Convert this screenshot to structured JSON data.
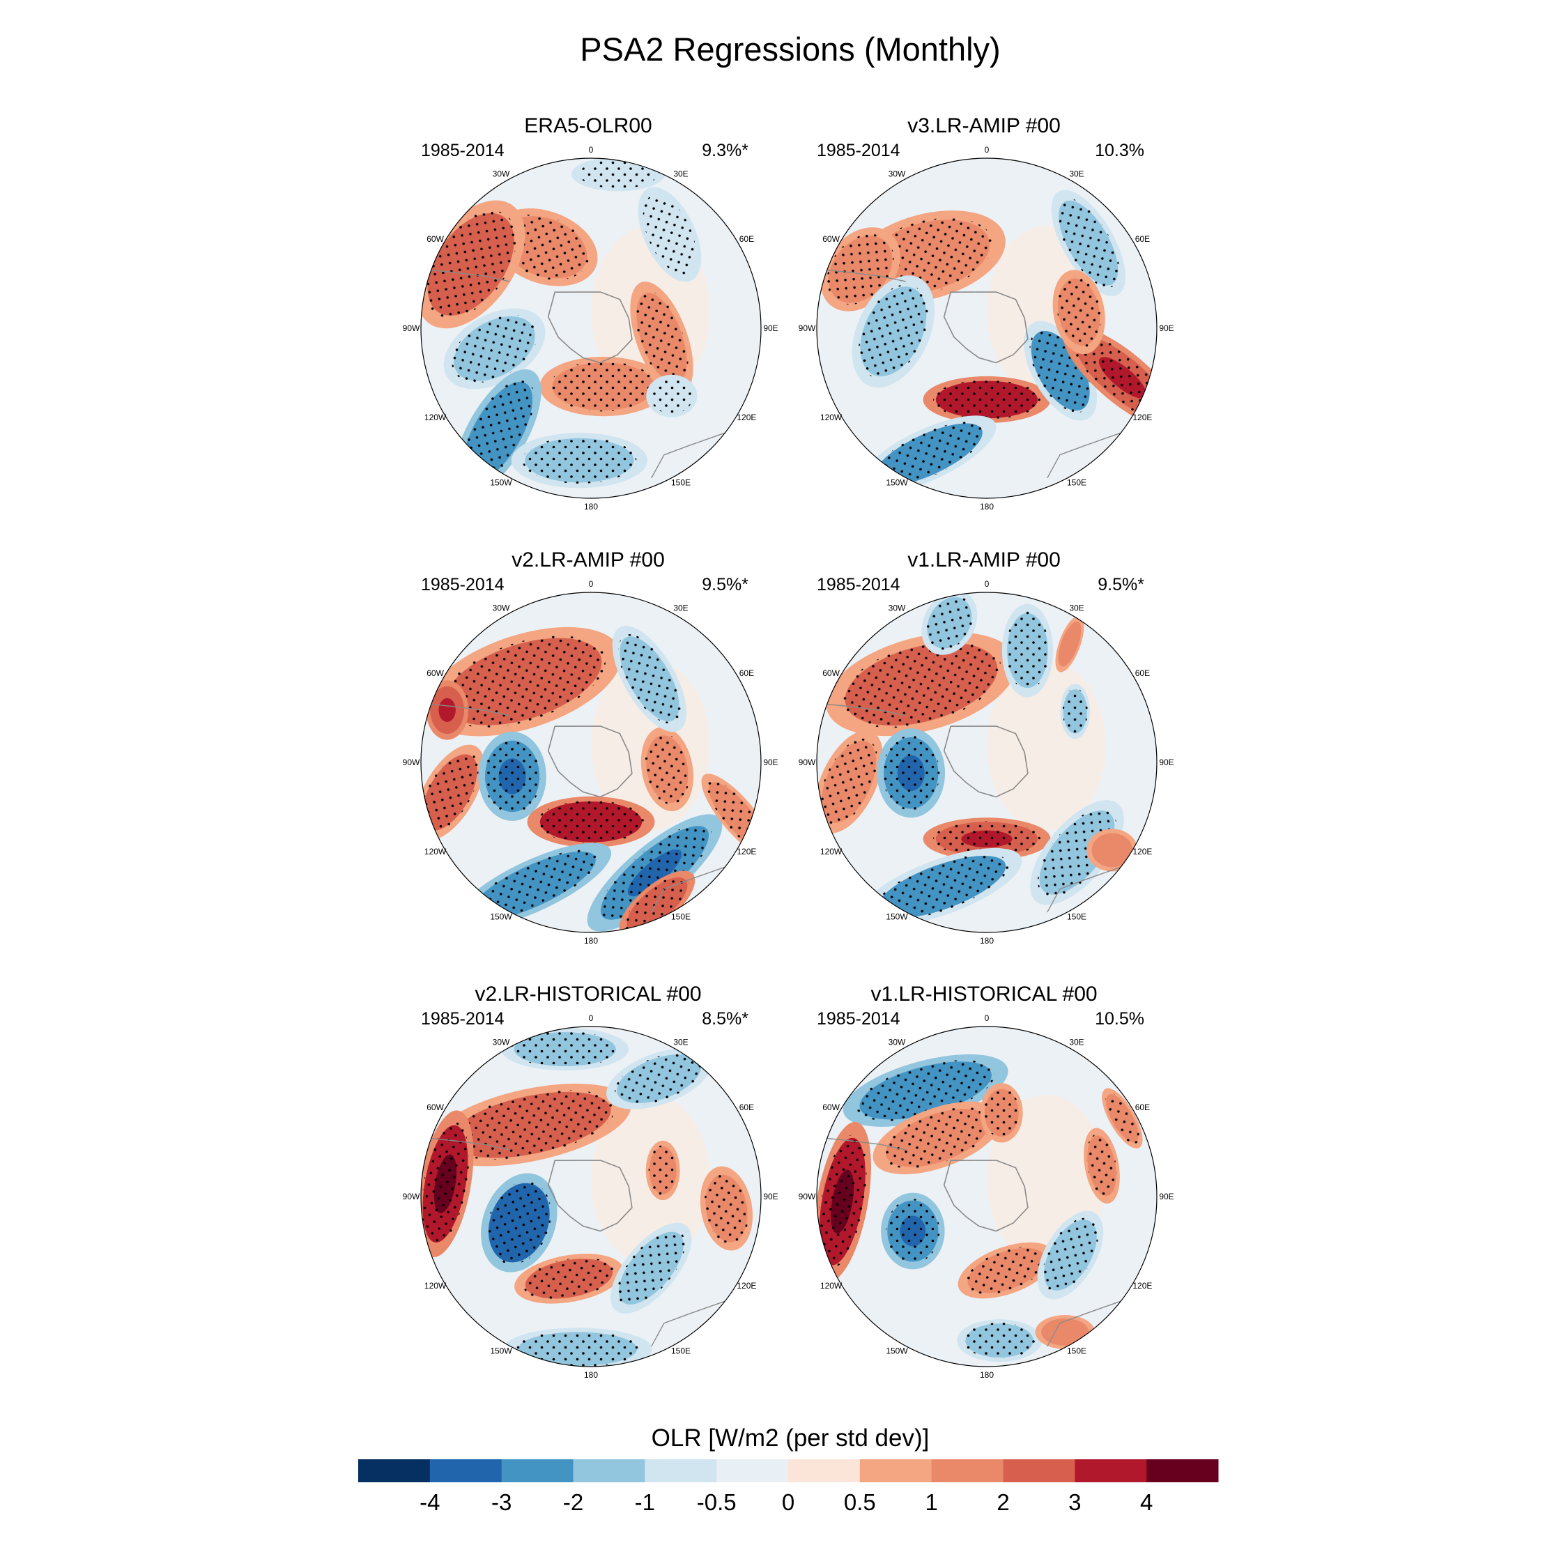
{
  "figure": {
    "title": "PSA2 Regressions (Monthly)"
  },
  "longitude_labels": [
    "0",
    "30E",
    "60E",
    "90E",
    "120E",
    "150E",
    "180",
    "150W",
    "120W",
    "90W",
    "60W",
    "30W"
  ],
  "panels": [
    {
      "title": "ERA5-OLR00",
      "period": "1985-2014",
      "pct": "9.3%*"
    },
    {
      "title": "v3.LR-AMIP  #00",
      "period": "1985-2014",
      "pct": "10.3%"
    },
    {
      "title": "v2.LR-AMIP  #00",
      "period": "1985-2014",
      "pct": "9.5%*"
    },
    {
      "title": "v1.LR-AMIP  #00",
      "period": "1985-2014",
      "pct": "9.5%*"
    },
    {
      "title": "v2.LR-HISTORICAL  #00",
      "period": "1985-2014",
      "pct": "8.5%*"
    },
    {
      "title": "v1.LR-HISTORICAL  #00",
      "period": "1985-2014",
      "pct": "10.5%"
    }
  ],
  "colorbar": {
    "title": "OLR [W/m2 (per std dev)]",
    "ticks": [
      "-4",
      "-3",
      "-2",
      "-1",
      "-0.5",
      "0",
      "0.5",
      "1",
      "2",
      "3",
      "4"
    ],
    "colors": [
      "#053061",
      "#2166ac",
      "#4393c3",
      "#92c5de",
      "#d1e5f0",
      "#e8eff5",
      "#fbe5d9",
      "#f4a582",
      "#e9896a",
      "#d6604d",
      "#b2182b",
      "#67001f"
    ]
  },
  "chart_data": {
    "type": "heatmap",
    "title": "PSA2 Regressions (Monthly)",
    "projection": "south polar stereographic",
    "variable": "OLR [W/m2 (per std dev)]",
    "levels": [
      -4,
      -3,
      -2,
      -1,
      -0.5,
      0,
      0.5,
      1,
      2,
      3,
      4
    ],
    "panels": [
      {
        "name": "ERA5-OLR00",
        "period": "1985-2014",
        "variance_explained": "9.3%*",
        "anomalies": [
          {
            "lon": 330,
            "colat": 0.55,
            "w": 0.26,
            "h": 0.17,
            "rot": 20,
            "value": 1.5,
            "stipple": true
          },
          {
            "lon": 298,
            "colat": 0.8,
            "w": 0.2,
            "h": 0.34,
            "rot": 35,
            "value": 2,
            "stipple": true
          },
          {
            "lon": 258,
            "colat": 0.58,
            "w": 0.16,
            "h": 0.26,
            "rot": 60,
            "value": -1.5,
            "stipple": true
          },
          {
            "lon": 168,
            "colat": 0.35,
            "w": 0.3,
            "h": 0.14,
            "rot": 0,
            "value": 1.8,
            "stipple": true
          },
          {
            "lon": 222,
            "colat": 0.82,
            "w": 0.14,
            "h": 0.33,
            "rot": 30,
            "value": -2.3,
            "stipple": true
          },
          {
            "lon": 185,
            "colat": 0.78,
            "w": 0.32,
            "h": 0.13,
            "rot": 0,
            "value": -1.5,
            "stipple": true
          },
          {
            "lon": 98,
            "colat": 0.42,
            "w": 0.12,
            "h": 0.28,
            "rot": -20,
            "value": 1.8,
            "stipple": true
          },
          {
            "lon": 40,
            "colat": 0.72,
            "w": 0.12,
            "h": 0.24,
            "rot": -25,
            "value": -0.8,
            "stipple": true
          },
          {
            "lon": 10,
            "colat": 0.92,
            "w": 0.22,
            "h": 0.08,
            "rot": 0,
            "value": -0.9,
            "stipple": true
          },
          {
            "lon": 130,
            "colat": 0.62,
            "w": 0.12,
            "h": 0.1,
            "rot": 0,
            "value": -0.8,
            "stipple": true
          }
        ]
      },
      {
        "name": "v3.LR-AMIP  #00",
        "period": "1985-2014",
        "variance_explained": "10.3%",
        "anomalies": [
          {
            "lon": 320,
            "colat": 0.55,
            "w": 0.38,
            "h": 0.2,
            "rot": -15,
            "value": 1.2,
            "stipple": true
          },
          {
            "lon": 295,
            "colat": 0.82,
            "w": 0.16,
            "h": 0.22,
            "rot": 40,
            "value": 1.8,
            "stipple": true
          },
          {
            "lon": 268,
            "colat": 0.55,
            "w": 0.17,
            "h": 0.28,
            "rot": 25,
            "value": -1.8,
            "stipple": true
          },
          {
            "lon": 180,
            "colat": 0.42,
            "w": 0.3,
            "h": 0.11,
            "rot": 0,
            "value": 3,
            "stipple": true
          },
          {
            "lon": 205,
            "colat": 0.82,
            "w": 0.35,
            "h": 0.12,
            "rot": -25,
            "value": -2.2,
            "stipple": true
          },
          {
            "lon": 120,
            "colat": 0.5,
            "w": 0.13,
            "h": 0.26,
            "rot": -30,
            "value": -2.2,
            "stipple": true
          },
          {
            "lon": 110,
            "colat": 0.85,
            "w": 0.12,
            "h": 0.35,
            "rot": -50,
            "value": 2.5,
            "stipple": true
          },
          {
            "lon": 50,
            "colat": 0.78,
            "w": 0.12,
            "h": 0.28,
            "rot": -30,
            "value": -1.8,
            "stipple": true
          },
          {
            "lon": 80,
            "colat": 0.55,
            "w": 0.12,
            "h": 0.2,
            "rot": -10,
            "value": 1.3,
            "stipple": true
          }
        ]
      },
      {
        "name": "v2.LR-AMIP  #00",
        "period": "1985-2014",
        "variance_explained": "9.5%*",
        "anomalies": [
          {
            "lon": 320,
            "colat": 0.62,
            "w": 0.48,
            "h": 0.22,
            "rot": -18,
            "value": 2,
            "stipple": true
          },
          {
            "lon": 290,
            "colat": 0.9,
            "w": 0.1,
            "h": 0.14,
            "rot": 0,
            "value": 2.8,
            "stipple": false
          },
          {
            "lon": 258,
            "colat": 0.85,
            "w": 0.12,
            "h": 0.25,
            "rot": 30,
            "value": 2,
            "stipple": true
          },
          {
            "lon": 260,
            "colat": 0.47,
            "w": 0.16,
            "h": 0.21,
            "rot": 0,
            "value": -3,
            "stipple": true
          },
          {
            "lon": 180,
            "colat": 0.35,
            "w": 0.3,
            "h": 0.12,
            "rot": 0,
            "value": 3,
            "stipple": true
          },
          {
            "lon": 205,
            "colat": 0.8,
            "w": 0.4,
            "h": 0.12,
            "rot": -25,
            "value": -2.3,
            "stipple": true
          },
          {
            "lon": 150,
            "colat": 0.75,
            "w": 0.13,
            "h": 0.4,
            "rot": 50,
            "value": -2.5,
            "stipple": true
          },
          {
            "lon": 155,
            "colat": 0.92,
            "w": 0.22,
            "h": 0.09,
            "rot": -40,
            "value": 2.3,
            "stipple": true
          },
          {
            "lon": 95,
            "colat": 0.45,
            "w": 0.12,
            "h": 0.2,
            "rot": -10,
            "value": 1.8,
            "stipple": true
          },
          {
            "lon": 35,
            "colat": 0.6,
            "w": 0.12,
            "h": 0.28,
            "rot": -30,
            "value": -1.8,
            "stipple": true
          },
          {
            "lon": 110,
            "colat": 0.92,
            "w": 0.08,
            "h": 0.25,
            "rot": -40,
            "value": 1.8,
            "stipple": true
          }
        ]
      },
      {
        "name": "v1.LR-AMIP  #00",
        "period": "1985-2014",
        "variance_explained": "9.5%*",
        "anomalies": [
          {
            "lon": 320,
            "colat": 0.6,
            "w": 0.46,
            "h": 0.22,
            "rot": -15,
            "value": 2,
            "stipple": true
          },
          {
            "lon": 262,
            "colat": 0.82,
            "w": 0.13,
            "h": 0.26,
            "rot": 25,
            "value": 1.8,
            "stipple": true
          },
          {
            "lon": 262,
            "colat": 0.45,
            "w": 0.16,
            "h": 0.21,
            "rot": 0,
            "value": -2.8,
            "stipple": true
          },
          {
            "lon": 180,
            "colat": 0.45,
            "w": 0.3,
            "h": 0.1,
            "rot": 0,
            "value": 2.5,
            "stipple": true
          },
          {
            "lon": 200,
            "colat": 0.78,
            "w": 0.4,
            "h": 0.13,
            "rot": -20,
            "value": -2.2,
            "stipple": true
          },
          {
            "lon": 135,
            "colat": 0.75,
            "w": 0.14,
            "h": 0.3,
            "rot": 40,
            "value": -1.8,
            "stipple": true
          },
          {
            "lon": 345,
            "colat": 0.85,
            "w": 0.12,
            "h": 0.16,
            "rot": 30,
            "value": -2,
            "stipple": true
          },
          {
            "lon": 20,
            "colat": 0.7,
            "w": 0.12,
            "h": 0.22,
            "rot": 0,
            "value": -1.5,
            "stipple": true
          },
          {
            "lon": 60,
            "colat": 0.6,
            "w": 0.07,
            "h": 0.13,
            "rot": 0,
            "value": -1.5,
            "stipple": true
          },
          {
            "lon": 35,
            "colat": 0.85,
            "w": 0.05,
            "h": 0.14,
            "rot": 20,
            "value": 1.8,
            "stipple": false
          },
          {
            "lon": 125,
            "colat": 0.9,
            "w": 0.12,
            "h": 0.1,
            "rot": 0,
            "value": 1.8,
            "stipple": false
          }
        ]
      },
      {
        "name": "v2.LR-HISTORICAL  #00",
        "period": "1985-2014",
        "variance_explained": "8.5%*",
        "anomalies": [
          {
            "lon": 320,
            "colat": 0.55,
            "w": 0.48,
            "h": 0.17,
            "rot": -12,
            "value": 2,
            "stipple": true
          },
          {
            "lon": 275,
            "colat": 0.86,
            "w": 0.12,
            "h": 0.35,
            "rot": 10,
            "value": 3.5,
            "stipple": true
          },
          {
            "lon": 250,
            "colat": 0.45,
            "w": 0.17,
            "h": 0.24,
            "rot": 20,
            "value": -3.2,
            "stipple": true
          },
          {
            "lon": 195,
            "colat": 0.5,
            "w": 0.26,
            "h": 0.11,
            "rot": -10,
            "value": 2.2,
            "stipple": true
          },
          {
            "lon": 185,
            "colat": 0.9,
            "w": 0.35,
            "h": 0.1,
            "rot": 0,
            "value": -1.8,
            "stipple": true
          },
          {
            "lon": 140,
            "colat": 0.55,
            "w": 0.12,
            "h": 0.26,
            "rot": 40,
            "value": -1.8,
            "stipple": true
          },
          {
            "lon": 95,
            "colat": 0.8,
            "w": 0.12,
            "h": 0.2,
            "rot": -10,
            "value": 1.8,
            "stipple": true
          },
          {
            "lon": 30,
            "colat": 0.8,
            "w": 0.26,
            "h": 0.12,
            "rot": -20,
            "value": -1.8,
            "stipple": true
          },
          {
            "lon": 350,
            "colat": 0.88,
            "w": 0.3,
            "h": 0.1,
            "rot": 0,
            "value": -1.5,
            "stipple": true
          },
          {
            "lon": 70,
            "colat": 0.45,
            "w": 0.08,
            "h": 0.14,
            "rot": 0,
            "value": 1.5,
            "stipple": true
          }
        ]
      },
      {
        "name": "v1.LR-HISTORICAL  #00",
        "period": "1985-2014",
        "variance_explained": "10.5%",
        "anomalies": [
          {
            "lon": 330,
            "colat": 0.72,
            "w": 0.4,
            "h": 0.14,
            "rot": -15,
            "value": -2.3,
            "stipple": true
          },
          {
            "lon": 320,
            "colat": 0.45,
            "w": 0.32,
            "h": 0.14,
            "rot": -20,
            "value": 1.8,
            "stipple": true
          },
          {
            "lon": 268,
            "colat": 0.85,
            "w": 0.12,
            "h": 0.38,
            "rot": 10,
            "value": 3.8,
            "stipple": true
          },
          {
            "lon": 245,
            "colat": 0.48,
            "w": 0.15,
            "h": 0.18,
            "rot": 0,
            "value": -3,
            "stipple": true
          },
          {
            "lon": 165,
            "colat": 0.45,
            "w": 0.24,
            "h": 0.11,
            "rot": -20,
            "value": 1.8,
            "stipple": true
          },
          {
            "lon": 175,
            "colat": 0.85,
            "w": 0.2,
            "h": 0.1,
            "rot": 0,
            "value": -1.8,
            "stipple": true
          },
          {
            "lon": 125,
            "colat": 0.6,
            "w": 0.12,
            "h": 0.23,
            "rot": 30,
            "value": -1.8,
            "stipple": true
          },
          {
            "lon": 75,
            "colat": 0.7,
            "w": 0.08,
            "h": 0.18,
            "rot": -10,
            "value": 1.5,
            "stipple": true
          },
          {
            "lon": 60,
            "colat": 0.92,
            "w": 0.06,
            "h": 0.16,
            "rot": -30,
            "value": 1.8,
            "stipple": true
          },
          {
            "lon": 10,
            "colat": 0.5,
            "w": 0.1,
            "h": 0.14,
            "rot": 0,
            "value": 1.2,
            "stipple": true
          },
          {
            "lon": 150,
            "colat": 0.92,
            "w": 0.14,
            "h": 0.08,
            "rot": 0,
            "value": 1.8,
            "stipple": false
          }
        ]
      }
    ]
  }
}
